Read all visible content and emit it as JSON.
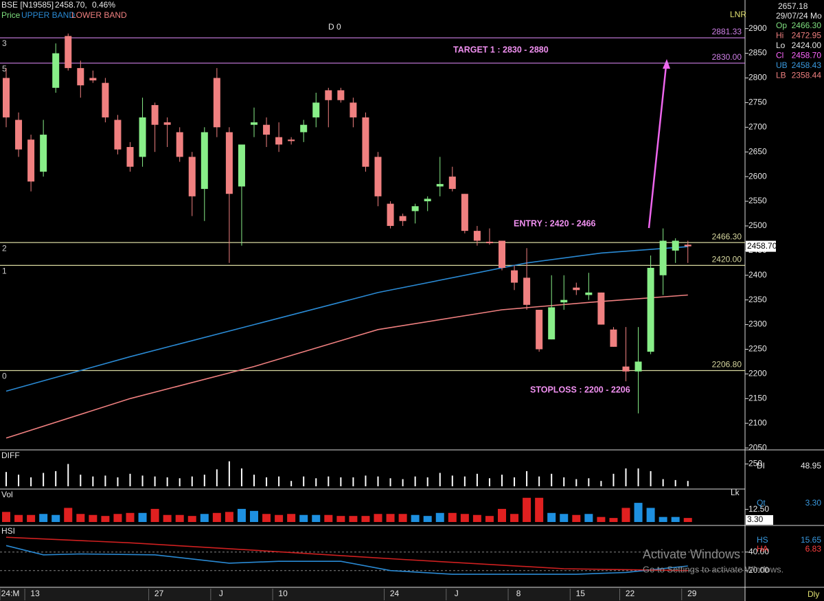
{
  "header": {
    "symbol": "BSE [N19585]",
    "price": "2458.70,",
    "change": "0.46%",
    "price_label": "Price",
    "marker": "D 0",
    "study": "LNR",
    "period": "Dly"
  },
  "info": {
    "cursor": "2657.18",
    "date": "29/07/24 Mo",
    "rows": [
      [
        "Op",
        "2466.30"
      ],
      [
        "Hi",
        "2472.95"
      ],
      [
        "Lo",
        "2424.00"
      ],
      [
        "Cl",
        "2458.70"
      ],
      [
        "UB",
        "2458.43"
      ],
      [
        "LB",
        "2358.44"
      ]
    ],
    "colors": [
      "#7fe07f",
      "#f08080",
      "#e8e8e8",
      "#ff66ff",
      "#3a9ae0",
      "#f08080"
    ]
  },
  "watermark": [
    "Activate Windows",
    "Go to Settings to activate Windows."
  ],
  "chart_data": [
    {
      "type": "candlestick",
      "categories": [
        "24:M",
        null,
        "13",
        null,
        null,
        null,
        null,
        null,
        null,
        null,
        null,
        null,
        "27",
        null,
        null,
        null,
        null,
        "J",
        null,
        null,
        null,
        null,
        "10",
        null,
        null,
        null,
        null,
        null,
        null,
        null,
        null,
        "24",
        null,
        null,
        null,
        null,
        "J",
        null,
        null,
        null,
        null,
        "8",
        null,
        null,
        null,
        null,
        "15",
        null,
        null,
        null,
        "22",
        null,
        null,
        null,
        null,
        "29"
      ],
      "open": [
        2800,
        2715,
        2675,
        2610,
        2780,
        2885,
        2820,
        2800,
        2790,
        2715,
        2660,
        2640,
        2745,
        2710,
        2690,
        2640,
        2575,
        2800,
        2690,
        2580,
        2705,
        2705,
        2680,
        2675,
        2690,
        2720,
        2775,
        2775,
        2750,
        2720,
        2640,
        2545,
        2520,
        2530,
        2550,
        2580,
        2600,
        2565,
        2490,
        2468,
        2470,
        2410,
        2395,
        2330,
        2270,
        2345,
        2375,
        2360,
        2365,
        2290,
        2215,
        2205,
        2245,
        2400,
        2450,
        2462
      ],
      "high": [
        2820,
        2730,
        2685,
        2715,
        2870,
        2890,
        2835,
        2815,
        2800,
        2725,
        2670,
        2760,
        2750,
        2720,
        2700,
        2650,
        2700,
        2820,
        2700,
        2660,
        2740,
        2720,
        2710,
        2680,
        2715,
        2770,
        2780,
        2780,
        2760,
        2730,
        2650,
        2550,
        2525,
        2545,
        2560,
        2640,
        2620,
        2565,
        2500,
        2495,
        2470,
        2420,
        2455,
        2330,
        2400,
        2400,
        2385,
        2405,
        2365,
        2295,
        2295,
        2295,
        2440,
        2495,
        2475,
        2470
      ],
      "low": [
        2700,
        2640,
        2570,
        2600,
        2770,
        2815,
        2760,
        2790,
        2710,
        2645,
        2610,
        2620,
        2650,
        2660,
        2630,
        2520,
        2510,
        2680,
        2425,
        2460,
        2680,
        2660,
        2650,
        2665,
        2670,
        2700,
        2700,
        2750,
        2700,
        2610,
        2540,
        2495,
        2500,
        2505,
        2530,
        2560,
        2570,
        2485,
        2460,
        2462,
        2410,
        2370,
        2330,
        2245,
        2270,
        2330,
        2360,
        2350,
        2300,
        2255,
        2185,
        2120,
        2240,
        2360,
        2425,
        2425
      ],
      "close": [
        2720,
        2655,
        2590,
        2685,
        2850,
        2820,
        2785,
        2795,
        2720,
        2655,
        2620,
        2720,
        2705,
        2705,
        2640,
        2560,
        2690,
        2700,
        2565,
        2665,
        2710,
        2685,
        2665,
        2672,
        2705,
        2750,
        2755,
        2755,
        2720,
        2620,
        2560,
        2500,
        2510,
        2540,
        2555,
        2585,
        2575,
        2490,
        2470,
        2465,
        2415,
        2385,
        2340,
        2250,
        2335,
        2350,
        2370,
        2365,
        2300,
        2255,
        2205,
        2225,
        2415,
        2470,
        2470,
        2458.7
      ],
      "up_color": "#88ee88",
      "down_color": "#f08080",
      "series": [
        {
          "name": "UPPER BAND",
          "color": "#2a8ad4",
          "x": [
            0,
            10,
            20,
            30,
            38,
            42,
            48,
            55
          ],
          "values": [
            2165,
            2235,
            2300,
            2365,
            2405,
            2425,
            2445,
            2458
          ]
        },
        {
          "name": "LOWER BAND",
          "color": "#f08080",
          "x": [
            0,
            10,
            20,
            30,
            40,
            47,
            55
          ],
          "values": [
            2070,
            2150,
            2215,
            2290,
            2330,
            2345,
            2360
          ]
        }
      ],
      "ylim": [
        2046,
        2958
      ],
      "yticks": [
        2050,
        2100,
        2150,
        2200,
        2250,
        2300,
        2350,
        2400,
        2450,
        2500,
        2550,
        2600,
        2650,
        2700,
        2750,
        2800,
        2850,
        2900
      ],
      "levels": [
        {
          "value": 2881.33,
          "label": "2881.33",
          "level": "3",
          "color": "#d080e8"
        },
        {
          "value": 2830,
          "label": "2830.00",
          "level": "5",
          "color": "#d080e8"
        },
        {
          "value": 2466.3,
          "label": "2466.30",
          "level": "2",
          "color": "#d8d8a0"
        },
        {
          "value": 2420,
          "label": "2420.00",
          "level": "1",
          "color": "#d8d8a0"
        },
        {
          "value": 2206.8,
          "label": "2206.80",
          "level": "0",
          "color": "#d8d8a0"
        }
      ],
      "annotations": [
        "TARGET 1 : 2830 - 2880",
        "ENTRY : 2420 - 2466",
        "STOPLOSS : 2200 - 2206"
      ],
      "last_label": "2458.70"
    },
    {
      "type": "bar",
      "title": "DIFF",
      "color": "#ffffff",
      "values": [
        160,
        130,
        100,
        150,
        170,
        250,
        130,
        110,
        120,
        100,
        140,
        120,
        110,
        100,
        90,
        110,
        130,
        190,
        280,
        200,
        130,
        100,
        110,
        60,
        110,
        90,
        110,
        100,
        100,
        120,
        110,
        90,
        80,
        110,
        100,
        150,
        120,
        110,
        140,
        90,
        130,
        100,
        170,
        110,
        140,
        100,
        80,
        90,
        60,
        140,
        200,
        200,
        170,
        80,
        70,
        60
      ],
      "ylim": [
        0,
        400
      ],
      "yticks": [
        250
      ],
      "side_name": "DI",
      "side_value": "48.95"
    },
    {
      "type": "bar",
      "title": "Vol",
      "up_color": "#1e90e0",
      "down_color": "#e02020",
      "values": [
        10,
        7,
        7,
        8,
        7,
        14,
        8,
        7,
        6,
        8,
        9,
        9,
        13,
        7,
        7,
        6,
        8,
        9,
        10,
        13,
        11,
        8,
        7,
        8,
        7,
        7,
        7,
        6,
        6,
        6,
        8,
        8,
        8,
        7,
        6,
        9,
        9,
        8,
        7,
        6,
        13,
        8,
        24,
        24,
        9,
        8,
        7,
        8,
        5,
        4,
        14,
        19,
        14,
        5,
        5,
        4
      ],
      "ylim": [
        0,
        32
      ],
      "yticks": [
        {
          "value": 12.5,
          "label": "12.50"
        }
      ],
      "cursor_label": "3.30",
      "corner_label": "Lk",
      "side_name": "Qt",
      "side_value": "3.30"
    },
    {
      "type": "line",
      "title": "HSI",
      "series": [
        {
          "name": "HS",
          "color": "#2a8ad4",
          "x": [
            0,
            3,
            6,
            12,
            18,
            22,
            27,
            31,
            36,
            40,
            46,
            50,
            55
          ],
          "values": [
            47,
            37,
            38,
            37,
            28,
            30,
            30,
            20,
            16,
            16,
            16,
            18,
            25
          ],
          "side_value": "15.65"
        },
        {
          "name": "HA",
          "color": "#d02020",
          "x": [
            0,
            10,
            20,
            32,
            45,
            55
          ],
          "values": [
            56,
            50,
            42,
            32,
            22,
            20
          ],
          "side_value": "6.83"
        }
      ],
      "ylim": [
        2,
        68
      ],
      "yticks": [
        {
          "value": 40,
          "label": "40.00"
        },
        {
          "value": 20,
          "label": "20.00"
        }
      ],
      "grid": true
    }
  ]
}
